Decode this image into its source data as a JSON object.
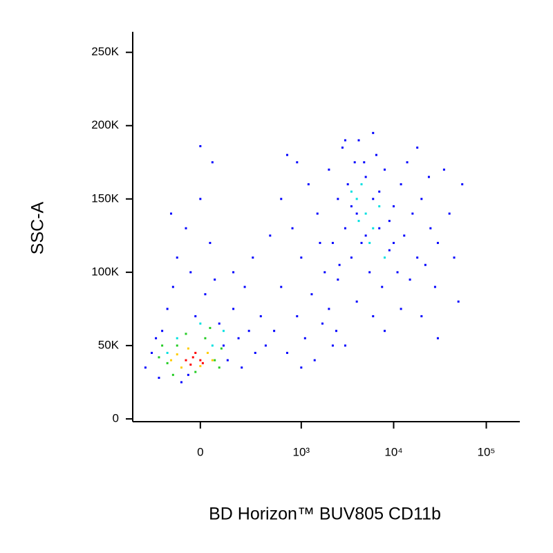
{
  "chart_data": {
    "type": "scatter",
    "xlabel": "BD Horizon™ BUV805 CD11b",
    "ylabel": "SSC-A",
    "xscale": "arcsinh",
    "xscale_cofactor": 164,
    "xlim": [
      -425,
      230000
    ],
    "xticks": [
      0,
      {
        "value": 1000,
        "label": "10³"
      },
      {
        "value": 10000,
        "label": "10⁴"
      },
      {
        "value": 100000,
        "label": "10⁵"
      }
    ],
    "ylim": [
      -1900,
      264000
    ],
    "yticks": [
      0,
      {
        "value": 50000,
        "label": "50K"
      },
      {
        "value": 100000,
        "label": "100K"
      },
      {
        "value": 150000,
        "label": "150K"
      },
      {
        "value": 200000,
        "label": "200K"
      },
      {
        "value": 250000,
        "label": "250K"
      }
    ],
    "series": [
      {
        "color": "#0000ff",
        "x": [
          -300,
          -250,
          -200,
          -180,
          -150,
          -120,
          -100,
          -80,
          -60,
          -40,
          -20,
          0,
          20,
          40,
          60,
          80,
          100,
          120,
          150,
          180,
          200,
          250,
          300,
          350,
          400,
          -220,
          -130,
          50,
          0,
          150,
          -50,
          220,
          280,
          500,
          600,
          700,
          800,
          900,
          1000,
          1100,
          1300,
          1500,
          1700,
          1200,
          900,
          600,
          450,
          1800,
          2000,
          2200,
          1400,
          2500,
          700,
          1600,
          2400,
          3000,
          1000,
          2000,
          2500,
          2800,
          3000,
          3200,
          3500,
          3800,
          4000,
          4200,
          4500,
          5000,
          5500,
          6000,
          6500,
          7000,
          7500,
          8000,
          9000,
          10000,
          11000,
          12000,
          13000,
          15000,
          16000,
          18000,
          20000,
          22000,
          25000,
          28000,
          30000,
          35000,
          40000,
          45000,
          55000,
          3000,
          4000,
          6000,
          8000,
          12000,
          20000,
          30000,
          50000,
          2200,
          3500,
          5000,
          7000,
          9000,
          14000,
          18000,
          6000,
          2600,
          4800,
          10000,
          24000
        ],
        "y": [
          35000,
          45000,
          28000,
          60000,
          75000,
          90000,
          110000,
          25000,
          130000,
          100000,
          70000,
          150000,
          85000,
          120000,
          95000,
          65000,
          50000,
          40000,
          75000,
          55000,
          35000,
          60000,
          45000,
          70000,
          50000,
          55000,
          140000,
          175000,
          186000,
          100000,
          30000,
          90000,
          110000,
          60000,
          90000,
          45000,
          130000,
          70000,
          110000,
          55000,
          85000,
          140000,
          65000,
          160000,
          175000,
          150000,
          125000,
          100000,
          75000,
          50000,
          40000,
          95000,
          180000,
          120000,
          60000,
          50000,
          35000,
          170000,
          150000,
          185000,
          130000,
          160000,
          110000,
          175000,
          140000,
          190000,
          120000,
          165000,
          100000,
          150000,
          180000,
          130000,
          90000,
          170000,
          115000,
          145000,
          100000,
          160000,
          125000,
          95000,
          140000,
          110000,
          150000,
          105000,
          130000,
          90000,
          120000,
          170000,
          140000,
          110000,
          160000,
          190000,
          80000,
          70000,
          60000,
          75000,
          70000,
          55000,
          80000,
          120000,
          145000,
          125000,
          155000,
          135000,
          175000,
          185000,
          195000,
          105000,
          175000,
          120000,
          165000
        ]
      },
      {
        "color": "#00e0e0",
        "x": [
          -100,
          0,
          50,
          -150,
          100,
          4000,
          5000,
          4500,
          6000,
          3500,
          7000,
          5500,
          8000,
          4200
        ],
        "y": [
          55000,
          65000,
          50000,
          45000,
          60000,
          150000,
          140000,
          160000,
          130000,
          155000,
          145000,
          120000,
          110000,
          135000
        ]
      },
      {
        "color": "#22cc22",
        "x": [
          -200,
          -150,
          -100,
          -60,
          -20,
          20,
          60,
          90,
          -120,
          40,
          -180,
          80
        ],
        "y": [
          42000,
          38000,
          50000,
          58000,
          32000,
          55000,
          40000,
          48000,
          30000,
          62000,
          50000,
          35000
        ]
      },
      {
        "color": "#ffcc00",
        "x": [
          -100,
          -50,
          0,
          30,
          -80,
          50,
          -130
        ],
        "y": [
          44000,
          48000,
          36000,
          45000,
          35000,
          40000,
          40000
        ]
      },
      {
        "color": "#ff0000",
        "x": [
          -60,
          -30,
          0,
          -40,
          -20,
          10
        ],
        "y": [
          40000,
          42000,
          40000,
          37000,
          45000,
          38000
        ]
      }
    ]
  }
}
